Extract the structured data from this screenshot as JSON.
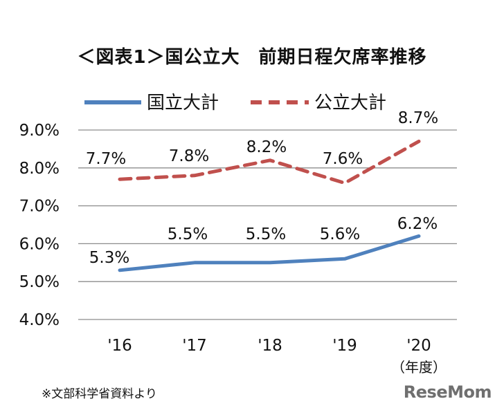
{
  "chart_data": {
    "type": "line",
    "title": "＜図表1＞国公立大　前期日程欠席率推移",
    "categories": [
      "'16",
      "'17",
      "'18",
      "'19",
      "'20"
    ],
    "xunit": "（年度）",
    "series": [
      {
        "name": "国立大計",
        "values": [
          5.3,
          5.5,
          5.5,
          5.6,
          6.2
        ],
        "labels": [
          "5.3%",
          "5.5%",
          "5.5%",
          "5.6%",
          "6.2%"
        ],
        "color": "#4f81bd",
        "style": "solid"
      },
      {
        "name": "公立大計",
        "values": [
          7.7,
          7.8,
          8.2,
          7.6,
          8.7
        ],
        "labels": [
          "7.7%",
          "7.8%",
          "8.2%",
          "7.6%",
          "8.7%"
        ],
        "color": "#c0504d",
        "style": "dashed"
      }
    ],
    "ylim": [
      4.0,
      9.0
    ],
    "yticks": [
      "4.0%",
      "5.0%",
      "6.0%",
      "7.0%",
      "8.0%",
      "9.0%"
    ],
    "grid": true,
    "legend": "top"
  },
  "source": "※文部科学省資料より",
  "watermark": "ReseMom"
}
